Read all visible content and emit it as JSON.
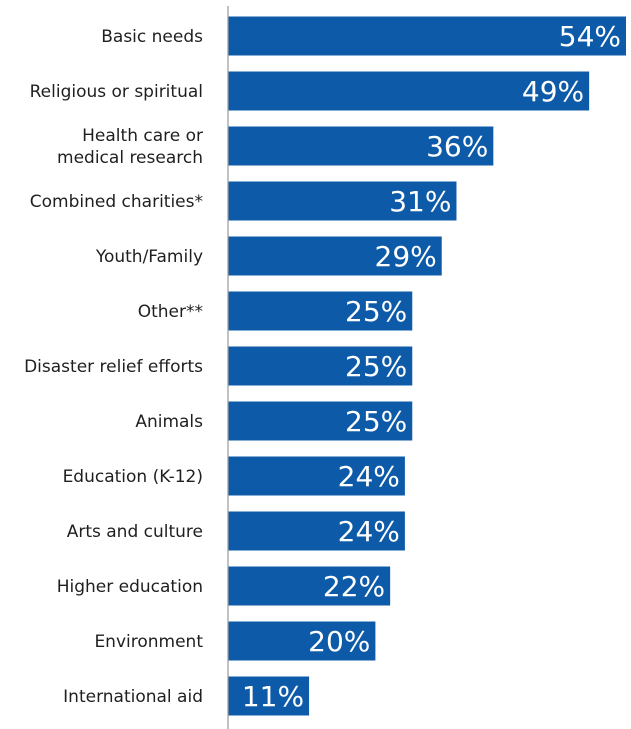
{
  "chart_data": {
    "type": "bar",
    "orientation": "horizontal",
    "categories": [
      [
        "Basic needs"
      ],
      [
        "Religious or spiritual"
      ],
      [
        "Health care or",
        "medical research"
      ],
      [
        "Combined charities*"
      ],
      [
        "Youth/Family"
      ],
      [
        "Other**"
      ],
      [
        "Disaster relief efforts"
      ],
      [
        "Animals"
      ],
      [
        "Education (K-12)"
      ],
      [
        "Arts and culture"
      ],
      [
        "Higher education"
      ],
      [
        "Environment"
      ],
      [
        "International aid"
      ]
    ],
    "values": [
      54,
      49,
      36,
      31,
      29,
      25,
      25,
      25,
      24,
      24,
      22,
      20,
      11
    ],
    "value_labels": [
      "54%",
      "49%",
      "36%",
      "31%",
      "29%",
      "25%",
      "25%",
      "25%",
      "24%",
      "24%",
      "22%",
      "20%",
      "11%"
    ],
    "unit": "%",
    "xlim": [
      0,
      54
    ],
    "grid": false,
    "legend": "none",
    "bar_color": "#0D5BA8",
    "axis_color": "#9a9a9a"
  }
}
